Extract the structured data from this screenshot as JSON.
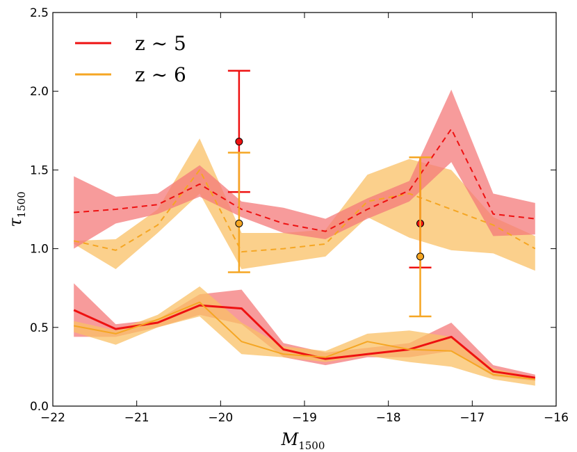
{
  "chart_data": {
    "type": "line",
    "xlabel": "M",
    "xlabel_sub": "1500",
    "ylabel": "τ",
    "ylabel_sub": "1500",
    "xlim": [
      -22,
      -16
    ],
    "ylim": [
      0.0,
      2.5
    ],
    "xticks": [
      -22,
      -21,
      -20,
      -19,
      -18,
      -17,
      -16
    ],
    "xtick_labels": [
      "−22",
      "−21",
      "−20",
      "−19",
      "−18",
      "−17",
      "−16"
    ],
    "yticks": [
      0.0,
      0.5,
      1.0,
      1.5,
      2.0,
      2.5
    ],
    "ytick_labels": [
      "0.0",
      "0.5",
      "1.0",
      "1.5",
      "2.0",
      "2.5"
    ],
    "grid": false,
    "legend_position": "top-left",
    "legend": [
      {
        "label": "z ∼ 5",
        "color": "#ee1111"
      },
      {
        "label": "z ∼ 6",
        "color": "#f5a623"
      }
    ],
    "x": [
      -21.75,
      -21.25,
      -20.75,
      -20.25,
      -19.75,
      -19.25,
      -18.75,
      -18.25,
      -17.75,
      -17.25,
      -16.75,
      -16.25
    ],
    "series": [
      {
        "group": "z5",
        "style": "solid",
        "color": "#ee1111",
        "band_color": "#f47a7a",
        "line_width": 3,
        "values": [
          0.61,
          0.49,
          0.53,
          0.64,
          0.62,
          0.36,
          0.3,
          0.33,
          0.36,
          0.44,
          0.22,
          0.18
        ],
        "lower": [
          0.44,
          0.44,
          0.5,
          0.58,
          0.52,
          0.31,
          0.26,
          0.31,
          0.31,
          0.35,
          0.19,
          0.16
        ],
        "upper": [
          0.78,
          0.52,
          0.55,
          0.71,
          0.74,
          0.4,
          0.34,
          0.37,
          0.4,
          0.53,
          0.26,
          0.2
        ]
      },
      {
        "group": "z6",
        "style": "solid",
        "color": "#f5a623",
        "band_color": "#f9c066",
        "line_width": 2,
        "values": [
          0.51,
          0.46,
          0.55,
          0.66,
          0.41,
          0.33,
          0.31,
          0.41,
          0.36,
          0.35,
          0.2,
          0.17
        ],
        "lower": [
          0.47,
          0.39,
          0.5,
          0.57,
          0.33,
          0.31,
          0.28,
          0.32,
          0.28,
          0.25,
          0.17,
          0.13
        ],
        "upper": [
          0.54,
          0.48,
          0.58,
          0.76,
          0.53,
          0.38,
          0.35,
          0.46,
          0.48,
          0.44,
          0.24,
          0.18
        ]
      },
      {
        "group": "z6",
        "style": "dashed",
        "color": "#f5a623",
        "band_color": "#f9c066",
        "line_width": 2,
        "values": [
          1.05,
          0.99,
          1.15,
          1.5,
          0.98,
          1.0,
          1.03,
          1.3,
          1.35,
          1.25,
          1.15,
          1.0
        ],
        "lower": [
          1.03,
          0.87,
          1.1,
          1.35,
          0.87,
          0.91,
          0.95,
          1.2,
          1.07,
          0.99,
          0.97,
          0.86
        ],
        "upper": [
          1.05,
          1.06,
          1.25,
          1.7,
          1.1,
          1.1,
          1.12,
          1.47,
          1.57,
          1.5,
          1.2,
          1.08
        ]
      },
      {
        "group": "z5",
        "style": "dashed",
        "color": "#ee1111",
        "band_color": "#f47a7a",
        "line_width": 2,
        "values": [
          1.23,
          1.25,
          1.28,
          1.41,
          1.25,
          1.16,
          1.11,
          1.25,
          1.37,
          1.76,
          1.22,
          1.19
        ],
        "lower": [
          1.0,
          1.16,
          1.22,
          1.33,
          1.2,
          1.1,
          1.06,
          1.19,
          1.3,
          1.55,
          1.08,
          1.09
        ],
        "upper": [
          1.46,
          1.33,
          1.35,
          1.53,
          1.3,
          1.26,
          1.19,
          1.32,
          1.43,
          2.01,
          1.35,
          1.29
        ]
      }
    ],
    "points": [
      {
        "group": "z5",
        "x": -19.78,
        "y": 1.68,
        "err_low": 1.36,
        "err_high": 2.13,
        "color": "#ee1111"
      },
      {
        "group": "z6",
        "x": -19.78,
        "y": 1.16,
        "err_low": 0.85,
        "err_high": 1.61,
        "color": "#f5a623"
      },
      {
        "group": "z5",
        "x": -17.62,
        "y": 1.16,
        "err_low": 0.88,
        "err_high": 1.58,
        "color": "#ee1111"
      },
      {
        "group": "z6",
        "x": -17.62,
        "y": 0.95,
        "err_low": 0.57,
        "err_high": 1.58,
        "color": "#f5a623"
      }
    ]
  }
}
